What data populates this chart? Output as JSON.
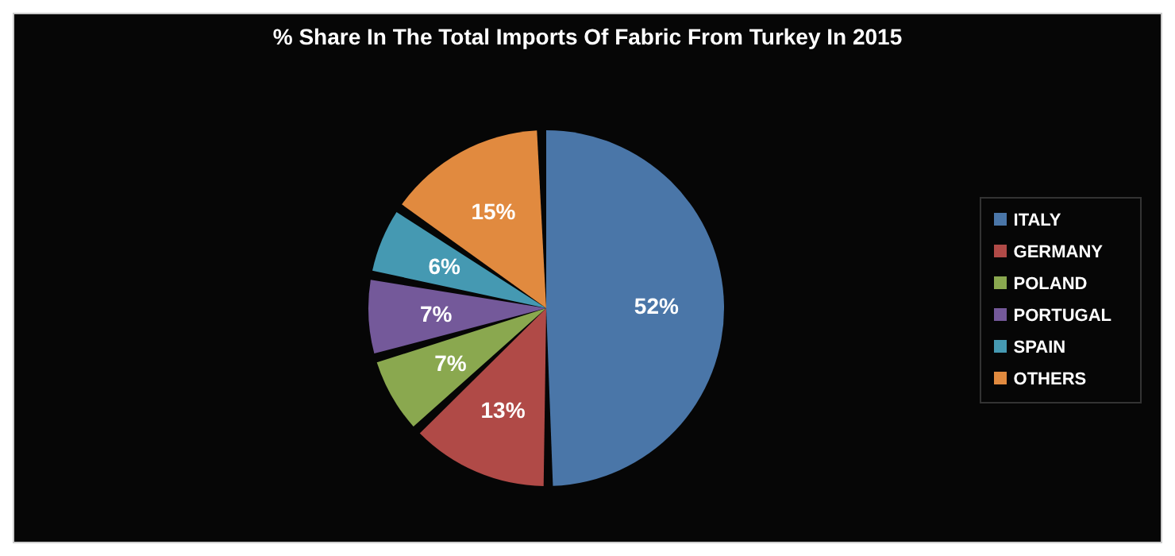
{
  "chart_data": {
    "type": "pie",
    "title": "% Share In The Total Imports Of Fabric From Turkey In 2015",
    "categories": [
      "ITALY",
      "GERMANY",
      "POLAND",
      "PORTUGAL",
      "SPAIN",
      "OTHERS"
    ],
    "values": [
      52,
      13,
      7,
      7,
      6,
      15
    ],
    "colors": [
      "#4a76a8",
      "#b04a47",
      "#8aa84f",
      "#74599a",
      "#4599b2",
      "#e18a3f"
    ],
    "value_labels": [
      "52%",
      "13%",
      "7%",
      "7%",
      "6%",
      "15%"
    ],
    "legend": "right"
  }
}
